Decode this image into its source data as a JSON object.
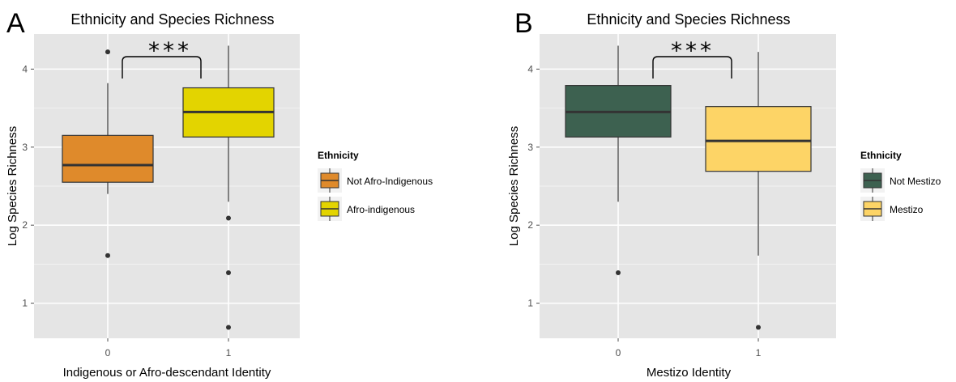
{
  "chart_data": [
    {
      "type": "box",
      "panel_label": "A",
      "title": "Ethnicity and Species Richness",
      "xlabel": "Indigenous or Afro-descendant Identity",
      "ylabel": "Log Species Richness",
      "categories": [
        "0",
        "1"
      ],
      "ylim": [
        0.55,
        4.45
      ],
      "yticks": [
        1,
        2,
        3,
        4
      ],
      "grid": true,
      "legend": {
        "title": "Ethnicity",
        "position": "right",
        "entries": [
          {
            "label": "Not Afro-Indigenous",
            "color": "#df8a2b"
          },
          {
            "label": "Afro-indigenous",
            "color": "#e3d400"
          }
        ]
      },
      "boxes": [
        {
          "category": "0",
          "whisker_low": 2.4,
          "q1": 2.55,
          "median": 2.77,
          "q3": 3.15,
          "whisker_high": 3.82,
          "outliers": [
            4.22,
            1.61
          ],
          "color": "#df8a2b"
        },
        {
          "category": "1",
          "whisker_low": 2.3,
          "q1": 3.13,
          "median": 3.45,
          "q3": 3.76,
          "whisker_high": 4.3,
          "outliers": [
            2.09,
            1.39,
            0.69
          ],
          "color": "#e3d400"
        }
      ],
      "annotation": "***"
    },
    {
      "type": "box",
      "panel_label": "B",
      "title": "Ethnicity and Species Richness",
      "xlabel": "Mestizo Identity",
      "ylabel": "Log Species Richness",
      "categories": [
        "0",
        "1"
      ],
      "ylim": [
        0.55,
        4.45
      ],
      "yticks": [
        1,
        2,
        3,
        4
      ],
      "grid": true,
      "legend": {
        "title": "Ethnicity",
        "position": "right",
        "entries": [
          {
            "label": "Not Mestizo",
            "color": "#3d6150"
          },
          {
            "label": "Mestizo",
            "color": "#fdd466"
          }
        ]
      },
      "boxes": [
        {
          "category": "0",
          "whisker_low": 2.3,
          "q1": 3.13,
          "median": 3.45,
          "q3": 3.79,
          "whisker_high": 4.3,
          "outliers": [
            1.39
          ],
          "color": "#3d6150"
        },
        {
          "category": "1",
          "whisker_low": 1.61,
          "q1": 2.69,
          "median": 3.08,
          "q3": 3.52,
          "whisker_high": 4.22,
          "outliers": [
            0.69
          ],
          "color": "#fdd466"
        }
      ],
      "annotation": "***"
    }
  ]
}
